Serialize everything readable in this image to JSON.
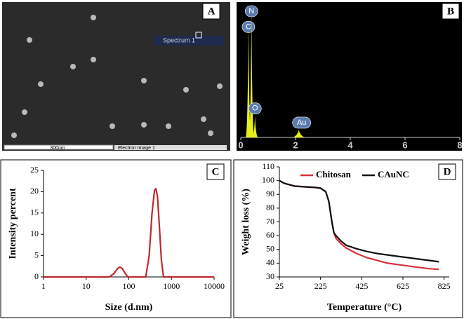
{
  "chart_data": [
    {
      "type": "image",
      "label": "A",
      "annotations": [
        "Spectrum 1",
        "300nm",
        "Electron Image 1"
      ]
    },
    {
      "type": "spectrum",
      "label": "B",
      "x": [
        0.28,
        0.39,
        0.52,
        2.12
      ],
      "peak_labels": [
        "C",
        "N",
        "O",
        "Au"
      ],
      "values": [
        90,
        100,
        17,
        6
      ],
      "ylim": [
        0,
        100
      ],
      "xlim": [
        0,
        8
      ],
      "xticks": [
        0,
        2,
        4,
        6,
        8
      ],
      "color": "#e6ee1a"
    },
    {
      "type": "line",
      "label": "C",
      "xlabel": "Size (d.nm)",
      "ylabel": "Intensity percent",
      "log_x": true,
      "x": [
        1,
        35,
        45,
        55,
        62,
        70,
        80,
        95,
        200,
        250,
        300,
        350,
        400,
        430,
        470,
        520,
        580,
        650,
        10000
      ],
      "series": [
        {
          "color": "#c0282d",
          "values": [
            0,
            0,
            0.8,
            2.0,
            2.3,
            2.0,
            1.0,
            0,
            0,
            0,
            5,
            15,
            20.3,
            20.7,
            19,
            12,
            4,
            0,
            0
          ]
        }
      ],
      "xlim": [
        1,
        10000
      ],
      "xticks": [
        1,
        10,
        100,
        1000,
        10000
      ],
      "ylim": [
        0,
        25
      ],
      "yticks": [
        0,
        5,
        10,
        15,
        20,
        25
      ]
    },
    {
      "type": "line",
      "label": "D",
      "xlabel": "Temperature (°C)",
      "ylabel": "Weight  loss (%)",
      "legend": "top",
      "x": [
        25,
        50,
        100,
        150,
        200,
        225,
        250,
        265,
        280,
        290,
        300,
        325,
        350,
        400,
        450,
        500,
        550,
        600,
        650,
        700,
        750,
        800
      ],
      "series": [
        {
          "name": "Chitosan",
          "color": "#d6303a",
          "values": [
            100,
            98,
            96,
            95.5,
            95,
            94.5,
            92,
            85,
            70,
            62,
            58,
            54,
            51,
            47,
            44,
            42,
            40,
            39,
            38,
            37,
            36,
            35.5
          ]
        },
        {
          "name": "CAuNC",
          "color": "#111111",
          "values": [
            100,
            98,
            96,
            95.5,
            95,
            94.5,
            92,
            85,
            70,
            62,
            60,
            56,
            53,
            50.5,
            48.5,
            47,
            46,
            45,
            44,
            43,
            42,
            41
          ]
        }
      ],
      "xlim": [
        25,
        850
      ],
      "xticks": [
        25,
        225,
        425,
        625,
        825
      ],
      "ylim": [
        30,
        110
      ],
      "yticks": [
        30,
        40,
        50,
        60,
        70,
        80,
        90,
        100,
        110
      ]
    }
  ]
}
